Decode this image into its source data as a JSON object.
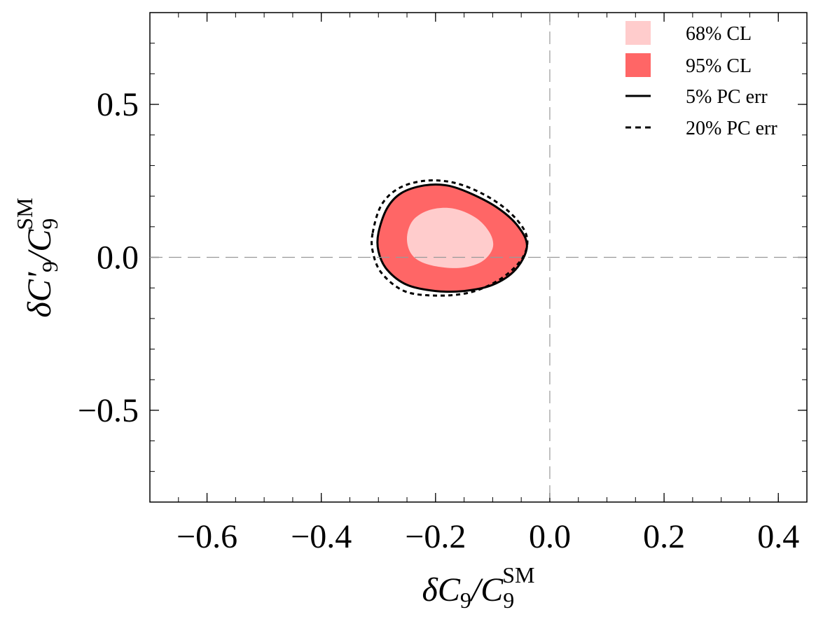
{
  "chart_data": {
    "type": "contour",
    "xlabel": {
      "prefix": "δC",
      "sub": "9",
      "slash": "/C",
      "sub2": "9",
      "sup": "SM"
    },
    "ylabel": {
      "prefix": "δC'",
      "sub": "9",
      "slash": "/C",
      "sub2": "9",
      "sup": "SM"
    },
    "xlim": [
      -0.7,
      0.45
    ],
    "ylim": [
      -0.8,
      0.8
    ],
    "xticks": [
      {
        "value": -0.6,
        "label": "−0.6"
      },
      {
        "value": -0.4,
        "label": "−0.4"
      },
      {
        "value": -0.2,
        "label": "−0.2"
      },
      {
        "value": 0.0,
        "label": "0.0"
      },
      {
        "value": 0.2,
        "label": "0.2"
      },
      {
        "value": 0.4,
        "label": "0.4"
      }
    ],
    "yticks": [
      {
        "value": 0.5,
        "label": "0.5"
      },
      {
        "value": 0.0,
        "label": "0.0"
      },
      {
        "value": -0.5,
        "label": "−0.5"
      }
    ],
    "reference_lines": {
      "x": 0.0,
      "y": 0.0,
      "style": "dashed",
      "color": "#999999"
    },
    "legend": {
      "position": "top-right",
      "entries": [
        {
          "label": "68% CL",
          "kind": "swatch",
          "color": "#ffcccc"
        },
        {
          "label": "95% CL",
          "kind": "swatch",
          "color": "#ff6666"
        },
        {
          "label": "5% PC err",
          "kind": "line",
          "style": "solid",
          "color": "#000000"
        },
        {
          "label": "20% PC err",
          "kind": "line",
          "style": "dashed",
          "color": "#000000"
        }
      ]
    },
    "series": [
      {
        "name": "95% CL",
        "kind": "filled-region",
        "color": "#ff6666",
        "edge_color": "#000000",
        "edge_style": "solid",
        "points": [
          [
            -0.3,
            0.08
          ],
          [
            -0.285,
            0.16
          ],
          [
            -0.26,
            0.21
          ],
          [
            -0.22,
            0.235
          ],
          [
            -0.18,
            0.235
          ],
          [
            -0.14,
            0.21
          ],
          [
            -0.09,
            0.16
          ],
          [
            -0.055,
            0.1
          ],
          [
            -0.04,
            0.035
          ],
          [
            -0.06,
            -0.04
          ],
          [
            -0.1,
            -0.09
          ],
          [
            -0.15,
            -0.11
          ],
          [
            -0.2,
            -0.11
          ],
          [
            -0.25,
            -0.09
          ],
          [
            -0.285,
            -0.04
          ],
          [
            -0.3,
            0.02
          ]
        ]
      },
      {
        "name": "68% CL",
        "kind": "filled-region",
        "color": "#ffcccc",
        "points": [
          [
            -0.25,
            0.06
          ],
          [
            -0.24,
            0.12
          ],
          [
            -0.21,
            0.155
          ],
          [
            -0.17,
            0.16
          ],
          [
            -0.13,
            0.13
          ],
          [
            -0.105,
            0.08
          ],
          [
            -0.1,
            0.03
          ],
          [
            -0.12,
            -0.015
          ],
          [
            -0.16,
            -0.035
          ],
          [
            -0.21,
            -0.025
          ],
          [
            -0.24,
            0.005
          ]
        ]
      },
      {
        "name": "20% PC err",
        "kind": "contour-line",
        "color": "#000000",
        "style": "dashed",
        "points": [
          [
            -0.31,
            0.08
          ],
          [
            -0.295,
            0.17
          ],
          [
            -0.265,
            0.225
          ],
          [
            -0.22,
            0.25
          ],
          [
            -0.17,
            0.245
          ],
          [
            -0.12,
            0.21
          ],
          [
            -0.075,
            0.155
          ],
          [
            -0.045,
            0.09
          ],
          [
            -0.04,
            0.035
          ],
          [
            -0.055,
            -0.02
          ],
          [
            -0.09,
            -0.075
          ],
          [
            -0.14,
            -0.115
          ],
          [
            -0.2,
            -0.125
          ],
          [
            -0.255,
            -0.11
          ],
          [
            -0.295,
            -0.05
          ],
          [
            -0.31,
            0.02
          ]
        ]
      }
    ]
  }
}
